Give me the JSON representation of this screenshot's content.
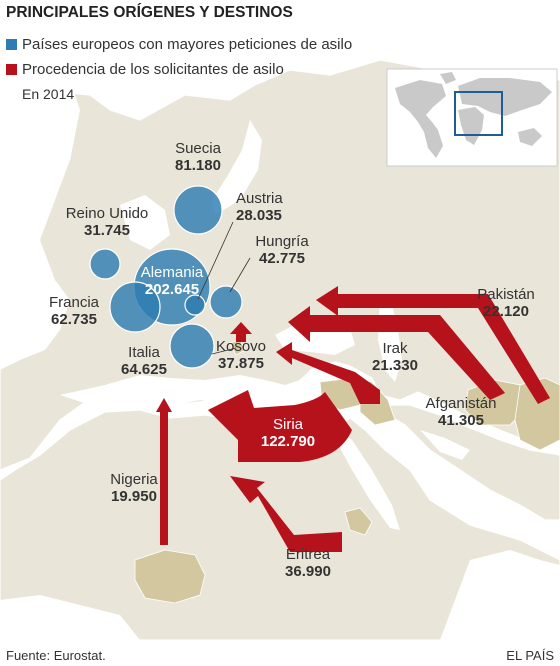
{
  "title": "PRINCIPALES ORÍGENES Y DESTINOS",
  "legend": {
    "destinations": "Países europeos con mayores peticiones de asilo",
    "origins": "Procedencia de los solicitantes de asilo",
    "year": "En 2014"
  },
  "colors": {
    "destination": "#2e7cb2",
    "origin": "#b5121b",
    "land": "#e9e5d8",
    "highlight_land": "#d3c79f",
    "sea": "#ffffff"
  },
  "destinations": [
    {
      "name": "Suecia",
      "value": "81.180"
    },
    {
      "name": "Austria",
      "value": "28.035"
    },
    {
      "name": "Reino Unido",
      "value": "31.745"
    },
    {
      "name": "Hungría",
      "value": "42.775"
    },
    {
      "name": "Alemania",
      "value": "202.645"
    },
    {
      "name": "Francia",
      "value": "62.735"
    },
    {
      "name": "Italia",
      "value": "64.625"
    }
  ],
  "origins": [
    {
      "name": "Kosovo",
      "value": "37.875"
    },
    {
      "name": "Pakistán",
      "value": "22.120"
    },
    {
      "name": "Irak",
      "value": "21.330"
    },
    {
      "name": "Afganistán",
      "value": "41.305"
    },
    {
      "name": "Siria",
      "value": "122.790"
    },
    {
      "name": "Nigeria",
      "value": "19.950"
    },
    {
      "name": "Eritrea",
      "value": "36.990"
    }
  ],
  "source": "Fuente: Eurostat.",
  "credit": "EL PAÍS"
}
